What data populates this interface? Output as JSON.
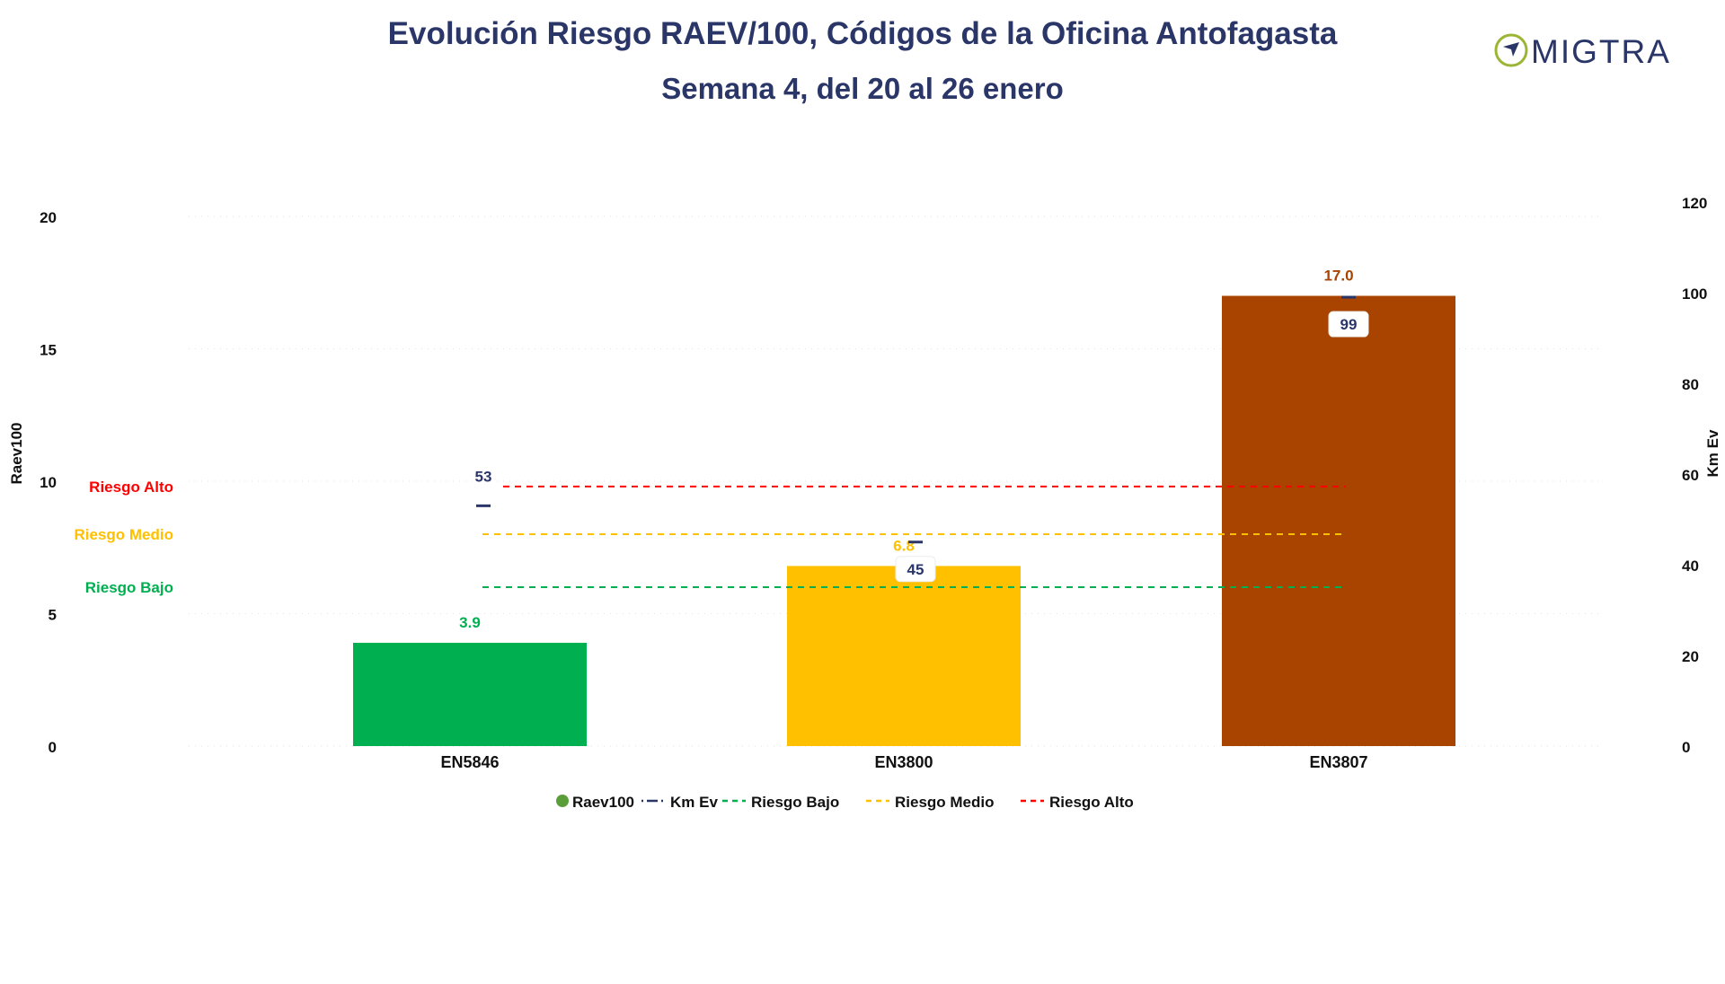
{
  "header": {
    "title": "Evolución Riesgo RAEV/100, Códigos de la Oficina Antofagasta",
    "subtitle": "Semana 4, del 20 al 26 enero",
    "logo_text": "MIGTRA"
  },
  "colors": {
    "title": "#2b3668",
    "bajo": "#00b050",
    "medio": "#ffc000",
    "alto": "#ff0000",
    "bar_high": "#a94400",
    "km": "#2b3668",
    "logo_green": "#9bb534"
  },
  "chart_data": {
    "type": "bar",
    "title": "Evolución Riesgo RAEV/100, Códigos de la Oficina Antofagasta",
    "subtitle": "Semana 4, del 20 al 26 enero",
    "categories": [
      "EN5846",
      "EN3800",
      "EN3807"
    ],
    "series": [
      {
        "name": "Raev100",
        "axis": "left",
        "values": [
          3.9,
          6.8,
          17.0
        ],
        "labels": [
          "3.9",
          "6.8",
          "17.0"
        ],
        "colors": [
          "#00b050",
          "#ffc000",
          "#a94400"
        ]
      },
      {
        "name": "Km Ev",
        "axis": "right",
        "values": [
          53,
          45,
          99
        ],
        "labels": [
          "53",
          "45",
          "99"
        ],
        "color": "#2b3668"
      }
    ],
    "reference_lines": [
      {
        "name": "Riesgo Bajo",
        "label": "Riesgo Bajo",
        "value": 6,
        "color": "#00b050"
      },
      {
        "name": "Riesgo Medio",
        "label": "Riesgo Medio",
        "value": 8,
        "color": "#ffc000"
      },
      {
        "name": "Riesgo Alto",
        "label": "Riesgo Alto",
        "value": 9.8,
        "color": "#ff0000"
      }
    ],
    "y_left": {
      "label": "Raev100",
      "min": 0,
      "max": 20,
      "ticks": [
        0,
        5,
        10,
        15,
        20
      ]
    },
    "y_right": {
      "label": "Km Ev",
      "min": 0,
      "max": 120,
      "ticks": [
        0,
        20,
        40,
        60,
        80,
        100,
        120
      ]
    },
    "grid": true,
    "legend": {
      "position": "bottom",
      "items": [
        "Raev100",
        "Km Ev",
        "Riesgo Bajo",
        "Riesgo Medio",
        "Riesgo Alto"
      ]
    }
  }
}
